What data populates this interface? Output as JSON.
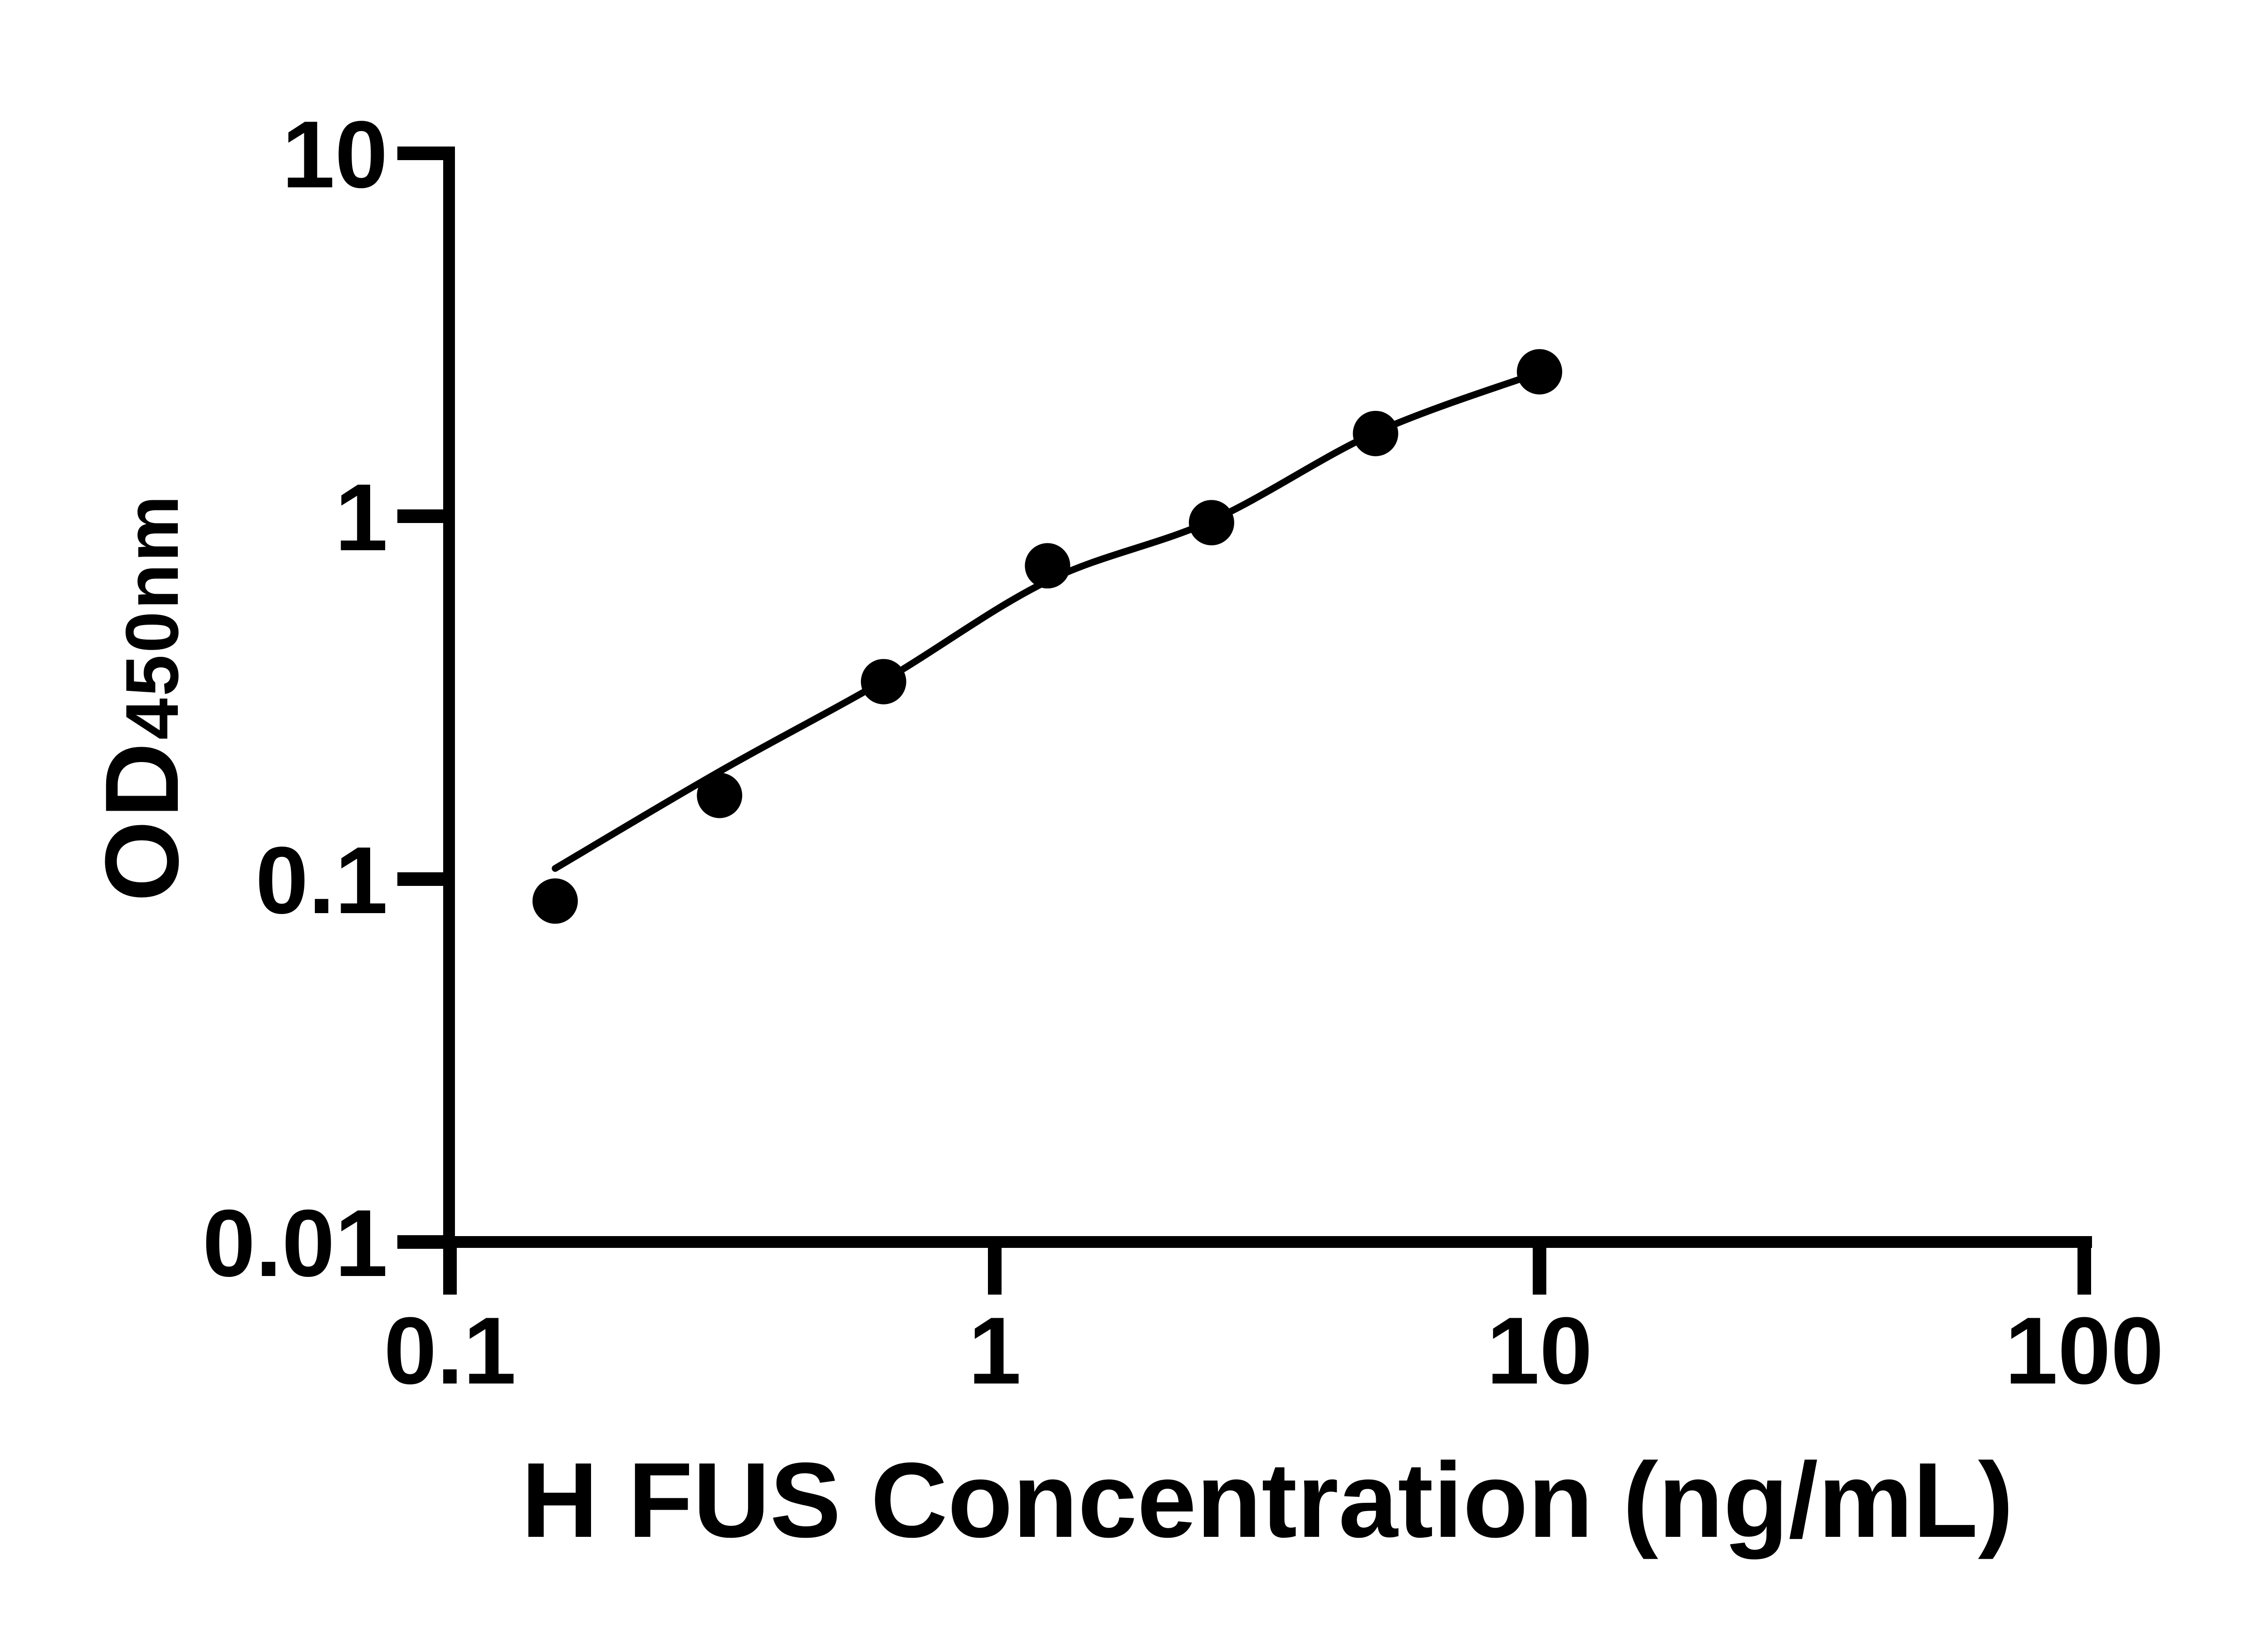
{
  "chart_data": {
    "type": "scatter",
    "title": "",
    "xlabel": "H FUS Concentration (ng/mL)",
    "ylabel_main": "OD",
    "ylabel_sub": "450nm",
    "x_scale": "log",
    "y_scale": "log",
    "xlim": [
      0.1,
      100
    ],
    "ylim": [
      0.01,
      10
    ],
    "x_ticks": [
      0.1,
      1,
      10,
      100
    ],
    "x_tick_labels": [
      "0.1",
      "1",
      "10",
      "100"
    ],
    "y_ticks": [
      0.01,
      0.1,
      1,
      10
    ],
    "y_tick_labels": [
      "0.01",
      "0.1",
      "1",
      "10"
    ],
    "grid": false,
    "legend": false,
    "series": [
      {
        "name": "standard-points",
        "type": "scatter",
        "x": [
          0.156,
          0.3125,
          0.625,
          1.25,
          2.5,
          5,
          10
        ],
        "y": [
          0.087,
          0.17,
          0.35,
          0.73,
          0.96,
          1.69,
          2.5
        ]
      },
      {
        "name": "fit-curve",
        "type": "line",
        "x": [
          0.156,
          0.3125,
          0.625,
          1.25,
          2.5,
          5,
          10
        ],
        "y": [
          0.107,
          0.198,
          0.352,
          0.663,
          0.972,
          1.7,
          2.49
        ]
      }
    ],
    "colors": {
      "points": "#000000",
      "curve": "#000000",
      "axis": "#000000",
      "background": "#ffffff"
    }
  }
}
